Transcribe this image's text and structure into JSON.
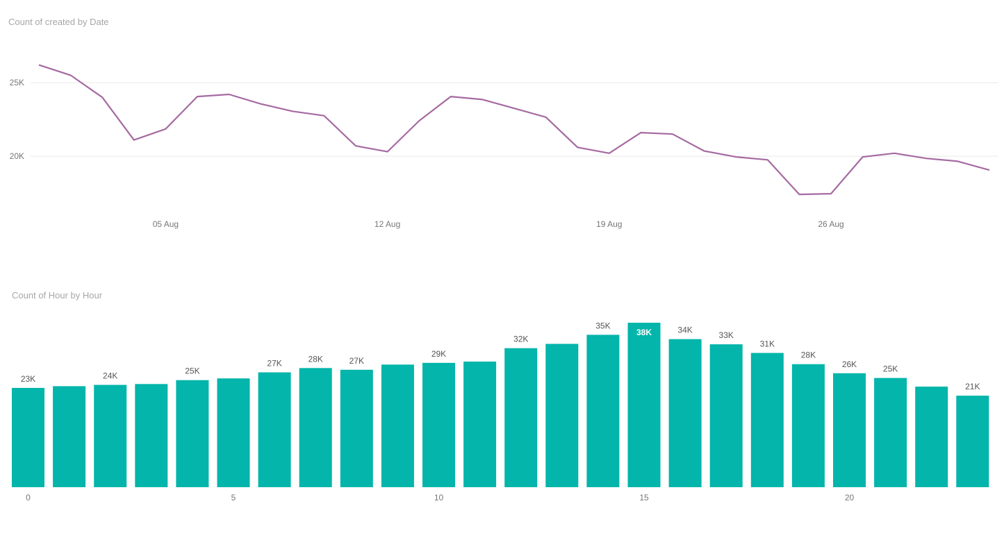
{
  "chart_data": [
    {
      "type": "line",
      "title": "Count of created by Date",
      "xlabel": "",
      "ylabel": "",
      "color": "#a56aa1",
      "x": [
        "2019-08-01",
        "2019-08-02",
        "2019-08-03",
        "2019-08-04",
        "2019-08-05",
        "2019-08-06",
        "2019-08-07",
        "2019-08-08",
        "2019-08-09",
        "2019-08-10",
        "2019-08-11",
        "2019-08-12",
        "2019-08-13",
        "2019-08-14",
        "2019-08-15",
        "2019-08-16",
        "2019-08-17",
        "2019-08-18",
        "2019-08-19",
        "2019-08-20",
        "2019-08-21",
        "2019-08-22",
        "2019-08-23",
        "2019-08-24",
        "2019-08-25",
        "2019-08-26",
        "2019-08-27",
        "2019-08-28",
        "2019-08-29",
        "2019-08-30",
        "2019-08-31"
      ],
      "values": [
        26200,
        25500,
        24000,
        21100,
        21850,
        24050,
        24200,
        23550,
        23050,
        22750,
        20700,
        20300,
        22400,
        24050,
        23850,
        23250,
        22650,
        20600,
        20200,
        21600,
        21500,
        20350,
        19950,
        19750,
        17400,
        17450,
        19950,
        20200,
        19850,
        19650,
        19050
      ],
      "x_ticks": [
        {
          "label": "05 Aug",
          "date": "2019-08-05"
        },
        {
          "label": "12 Aug",
          "date": "2019-08-12"
        },
        {
          "label": "19 Aug",
          "date": "2019-08-19"
        },
        {
          "label": "26 Aug",
          "date": "2019-08-26"
        }
      ],
      "y_ticks": [
        {
          "label": "25K",
          "value": 25000
        },
        {
          "label": "20K",
          "value": 20000
        }
      ],
      "grid": true
    },
    {
      "type": "bar",
      "title": "Count of Hour by Hour",
      "xlabel": "",
      "ylabel": "",
      "color": "#03b5aa",
      "categories": [
        0,
        1,
        2,
        3,
        4,
        5,
        6,
        7,
        8,
        9,
        10,
        11,
        12,
        13,
        14,
        15,
        16,
        17,
        18,
        19,
        20,
        21,
        22,
        23
      ],
      "values": [
        23000,
        23400,
        23700,
        23900,
        24800,
        25200,
        26600,
        27600,
        27200,
        28400,
        28800,
        29100,
        32200,
        33200,
        35300,
        38100,
        34300,
        33100,
        31100,
        28500,
        26400,
        25300,
        23300,
        21200
      ],
      "data_labels": [
        "23K",
        "",
        "24K",
        "",
        "25K",
        "",
        "27K",
        "28K",
        "27K",
        "",
        "29K",
        "",
        "32K",
        "",
        "35K",
        "38K",
        "34K",
        "33K",
        "31K",
        "28K",
        "26K",
        "25K",
        "",
        "21K"
      ],
      "highlight_index": 15,
      "x_ticks": [
        "0",
        "5",
        "10",
        "15",
        "20"
      ],
      "grid": false
    }
  ]
}
